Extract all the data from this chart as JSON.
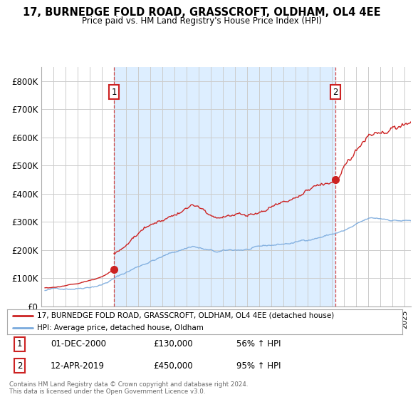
{
  "title": "17, BURNEDGE FOLD ROAD, GRASSCROFT, OLDHAM, OL4 4EE",
  "subtitle": "Price paid vs. HM Land Registry's House Price Index (HPI)",
  "legend_line1": "17, BURNEDGE FOLD ROAD, GRASSCROFT, OLDHAM, OL4 4EE (detached house)",
  "legend_line2": "HPI: Average price, detached house, Oldham",
  "annotation1_label": "1",
  "annotation1_date": "01-DEC-2000",
  "annotation1_price": "£130,000",
  "annotation1_hpi": "56% ↑ HPI",
  "annotation2_label": "2",
  "annotation2_date": "12-APR-2019",
  "annotation2_price": "£450,000",
  "annotation2_hpi": "95% ↑ HPI",
  "footer": "Contains HM Land Registry data © Crown copyright and database right 2024.\nThis data is licensed under the Open Government Licence v3.0.",
  "hpi_color": "#7aaadd",
  "price_color": "#cc2222",
  "shade_color": "#ddeeff",
  "background_color": "#ffffff",
  "grid_color": "#cccccc",
  "ylim": [
    0,
    850000
  ],
  "yticks": [
    0,
    100000,
    200000,
    300000,
    400000,
    500000,
    600000,
    700000,
    800000
  ],
  "ytick_labels": [
    "£0",
    "£100K",
    "£200K",
    "£300K",
    "£400K",
    "£500K",
    "£600K",
    "£700K",
    "£800K"
  ],
  "sale1_x": 2001.0,
  "sale1_y": 130000,
  "sale2_x": 2019.28,
  "sale2_y": 450000,
  "xmin": 1995.3,
  "xmax": 2025.5
}
